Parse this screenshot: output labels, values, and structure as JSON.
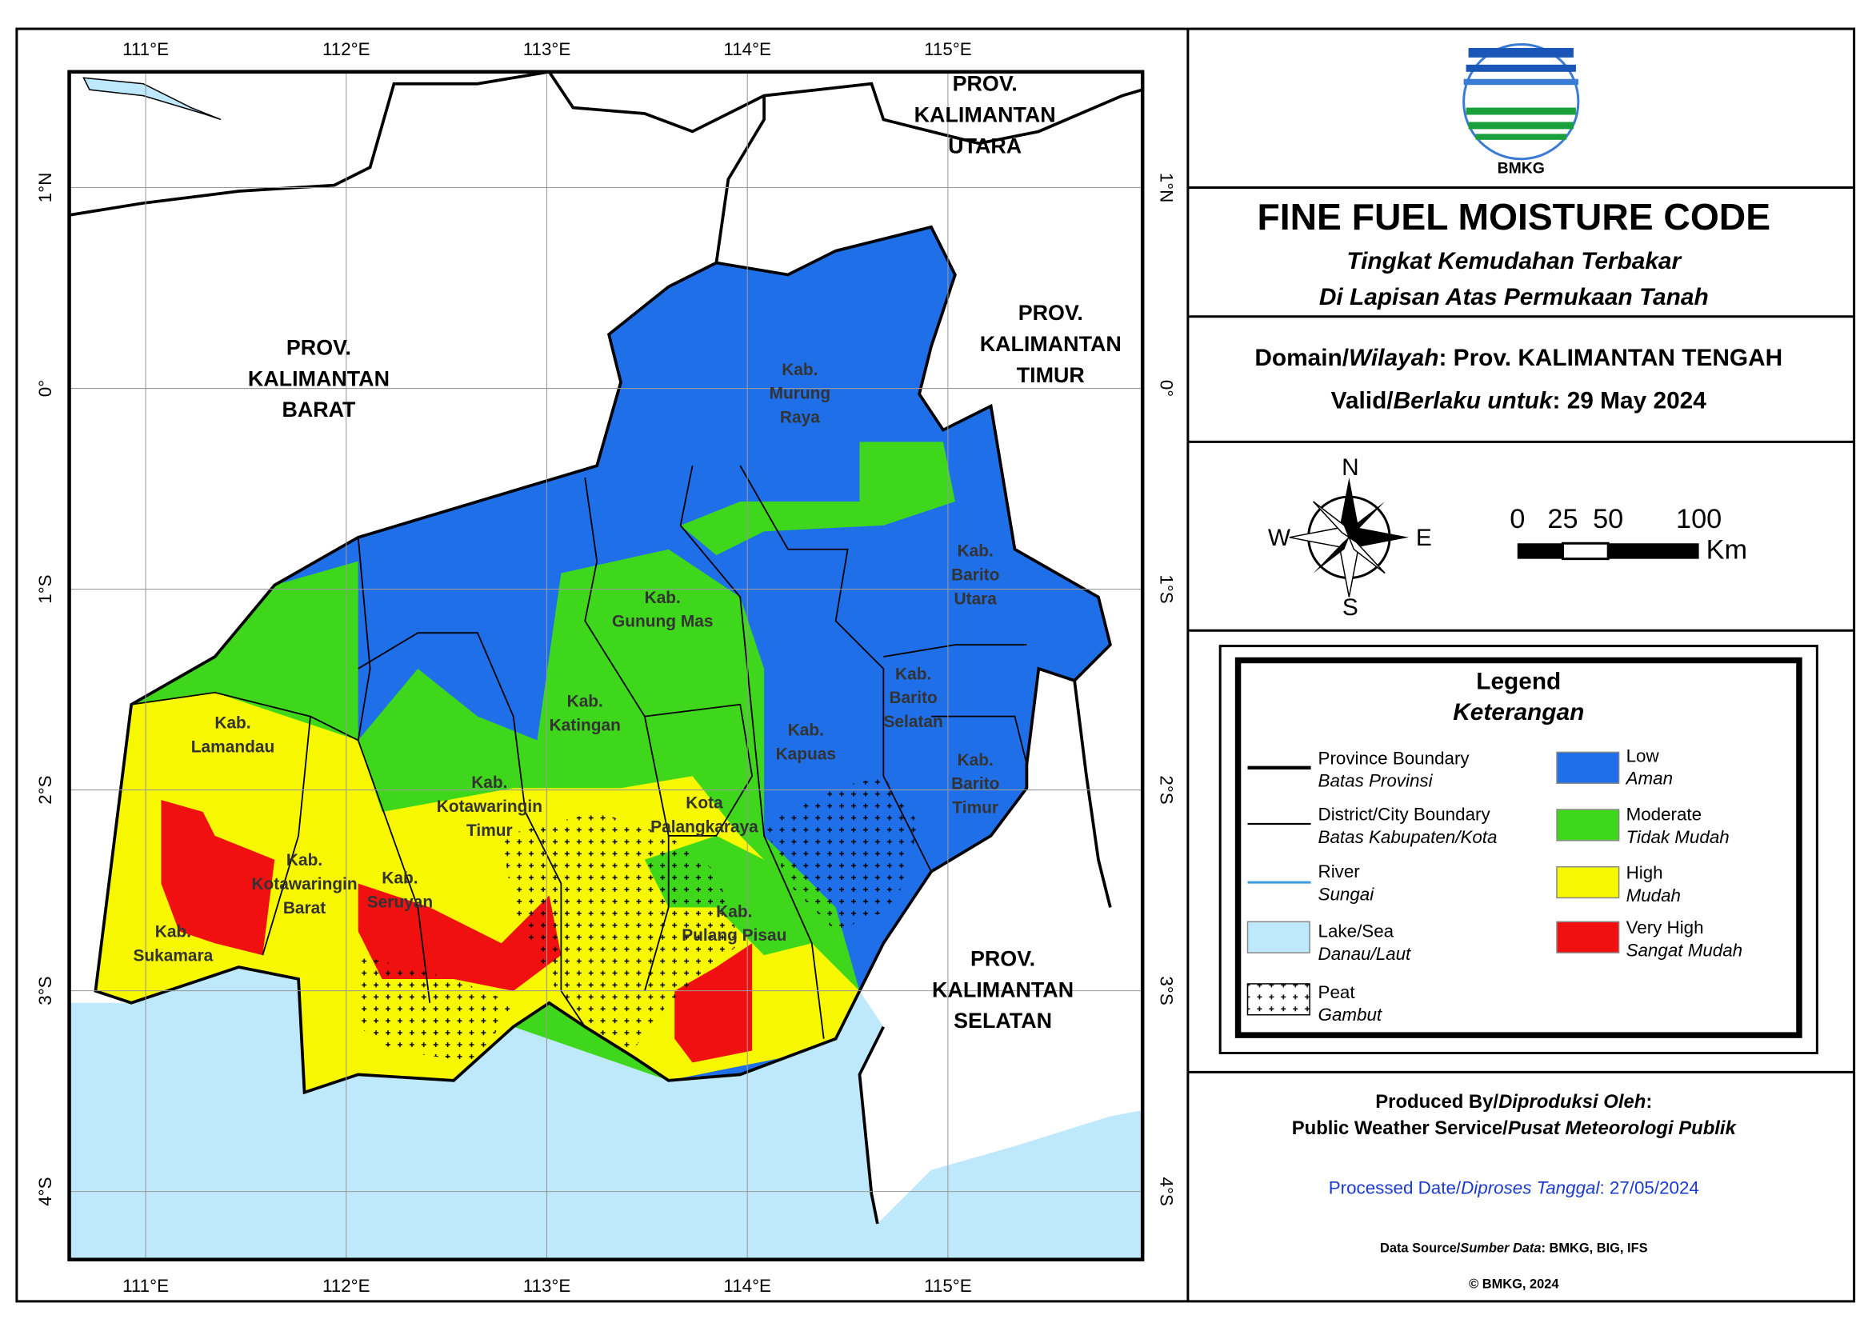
{
  "logo": "BMKG",
  "map": {
    "lon_labels": [
      "111°E",
      "112°E",
      "113°E",
      "114°E",
      "115°E"
    ],
    "lat_labels": [
      "1°N",
      "0°",
      "1°S",
      "2°S",
      "3°S",
      "4°S"
    ],
    "provinces": [
      [
        "PROV.",
        "KALIMANTAN",
        "BARAT"
      ],
      [
        "PROV.",
        "KALIMANTAN",
        "UTARA"
      ],
      [
        "PROV.",
        "KALIMANTAN",
        "TIMUR"
      ],
      [
        "PROV.",
        "KALIMANTAN",
        "SELATAN"
      ]
    ],
    "districts": [
      [
        "Kab.",
        "Murung",
        "Raya"
      ],
      [
        "Kab.",
        "Barito",
        "Utara"
      ],
      [
        "Kab.",
        "Gunung Mas"
      ],
      [
        "Kab.",
        "Barito",
        "Selatan"
      ],
      [
        "Kab.",
        "Katingan"
      ],
      [
        "Kab.",
        "Kapuas"
      ],
      [
        "Kab.",
        "Barito",
        "Timur"
      ],
      [
        "Kab.",
        "Lamandau"
      ],
      [
        "Kab.",
        "Kotawaringin",
        "Timur"
      ],
      [
        "Kota",
        "Palangkaraya"
      ],
      [
        "Kab.",
        "Kotawaringin",
        "Barat"
      ],
      [
        "Kab.",
        "Seruyan"
      ],
      [
        "Kab.",
        "Pulang Pisau"
      ],
      [
        "Kab.",
        "Sukamara"
      ]
    ]
  },
  "header": {
    "title": "FINE FUEL MOISTURE CODE",
    "subtitle": [
      "Tingkat Kemudahan Terbakar",
      "Di Lapisan Atas Permukaan Tanah"
    ]
  },
  "info": {
    "domain": [
      "Domain/",
      "Wilayah",
      ": Prov. KALIMANTAN TENGAH"
    ],
    "valid": [
      "Valid/",
      "Berlaku untuk",
      ": 29 May 2024"
    ]
  },
  "compass": {
    "n": "N",
    "s": "S",
    "e": "E",
    "w": "W"
  },
  "scale": {
    "marks": [
      0,
      25,
      50,
      100
    ],
    "unit": "Km"
  },
  "legend": {
    "title": "Legend",
    "subtitle": "Keterangan",
    "lines": [
      [
        "Province Boundary",
        "Batas Provinsi"
      ],
      [
        "District/City Boundary",
        "Batas Kabupaten/Kota"
      ],
      [
        "River",
        "Sungai"
      ],
      [
        "Lake/Sea",
        "Danau/Laut"
      ],
      [
        "Peat",
        "Gambut"
      ]
    ],
    "classes": [
      [
        "Low",
        "Aman"
      ],
      [
        "Moderate",
        "Tidak Mudah"
      ],
      [
        "High",
        "Mudah"
      ],
      [
        "Very High",
        "Sangat Mudah"
      ]
    ]
  },
  "footer": {
    "produced": [
      "Produced By/",
      "Diproduksi Oleh",
      ":"
    ],
    "service": [
      "Public Weather Service/",
      "Pusat Meteorologi Publik"
    ],
    "processed": [
      "Processed Date/",
      "Diproses Tanggal",
      ": 27/05/2024"
    ],
    "source": [
      "Data Source/",
      "Sumber Data",
      ": BMKG, BIG, IFS"
    ],
    "copyright": "© BMKG, 2024"
  }
}
